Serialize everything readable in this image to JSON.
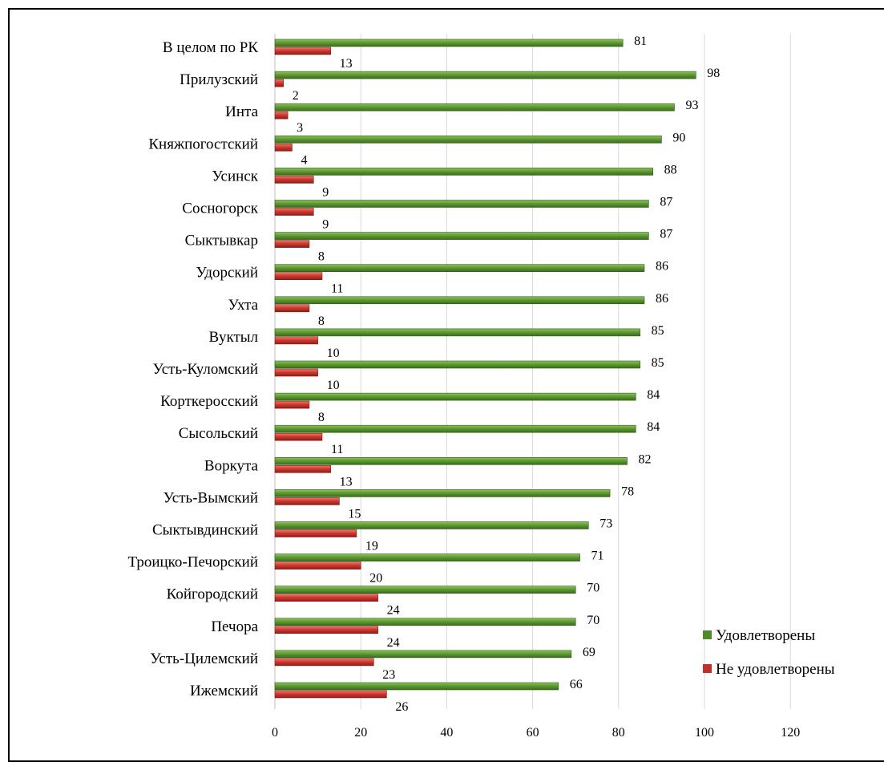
{
  "chart_data": {
    "type": "bar",
    "orientation": "horizontal",
    "categories": [
      "В целом по РК",
      "Прилузский",
      "Инта",
      "Княжпогостский",
      "Усинск",
      "Сосногорск",
      "Сыктывкар",
      "Удорский",
      "Ухта",
      "Вуктыл",
      "Усть-Куломский",
      "Корткеросский",
      "Сысольский",
      "Воркута",
      "Усть-Вымский",
      "Сыктывдинский",
      "Троицко-Печорский",
      "Койгородский",
      "Печора",
      "Усть-Цилемский",
      "Ижемский"
    ],
    "series": [
      {
        "name": "Удовлетворены",
        "color": "#4f8a2a",
        "values": [
          81,
          98,
          93,
          90,
          88,
          87,
          87,
          86,
          86,
          85,
          85,
          84,
          84,
          82,
          78,
          73,
          71,
          70,
          70,
          69,
          66
        ]
      },
      {
        "name": "Не удовлетворены",
        "color": "#c0312c",
        "values": [
          13,
          2,
          3,
          4,
          9,
          9,
          8,
          11,
          8,
          10,
          10,
          8,
          11,
          13,
          15,
          19,
          20,
          24,
          24,
          23,
          26
        ]
      }
    ],
    "xlim": [
      0,
      120
    ],
    "xticks": [
      0,
      20,
      40,
      60,
      80,
      100,
      120
    ],
    "grid": true,
    "legend_position": "bottom-right",
    "title": "",
    "xlabel": "",
    "ylabel": ""
  }
}
